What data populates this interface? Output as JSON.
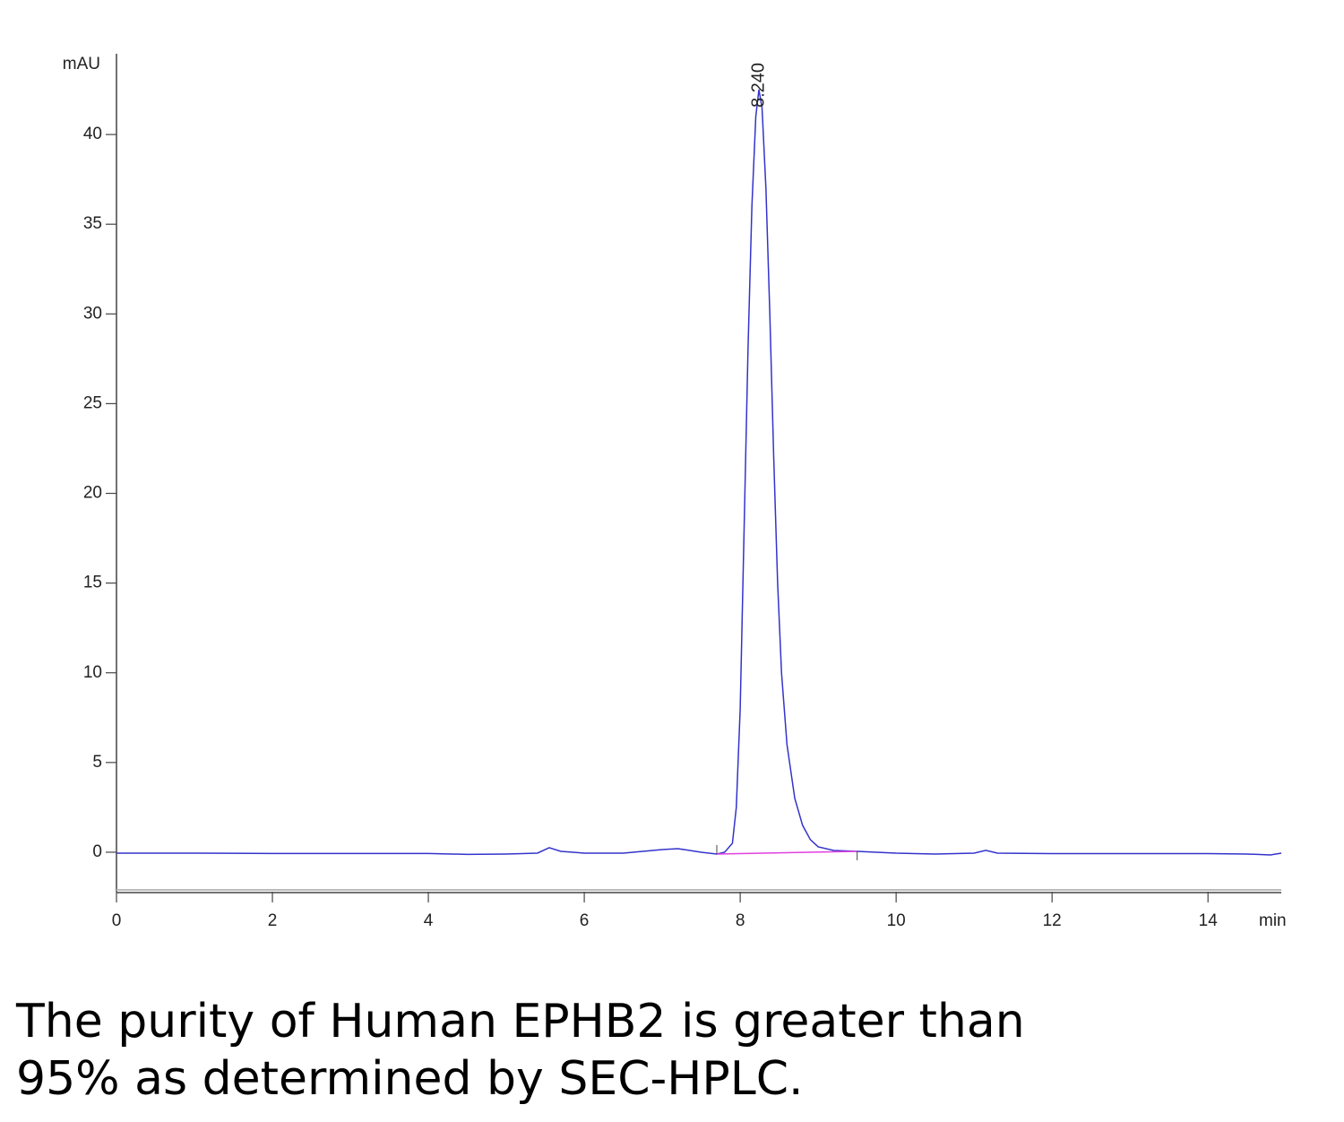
{
  "chart_data": {
    "type": "line",
    "y_label": "mAU",
    "x_label": "min",
    "x": [
      0,
      1,
      2,
      3,
      4,
      4.5,
      5,
      5.4,
      5.55,
      5.7,
      6,
      6.5,
      7.0,
      7.2,
      7.5,
      7.7,
      7.8,
      7.9,
      7.95,
      8.0,
      8.05,
      8.1,
      8.15,
      8.2,
      8.24,
      8.28,
      8.33,
      8.38,
      8.43,
      8.48,
      8.53,
      8.6,
      8.7,
      8.8,
      8.9,
      9.0,
      9.2,
      9.5,
      10,
      10.5,
      11,
      11.15,
      11.3,
      12,
      13,
      14,
      14.5,
      14.8,
      14.94
    ],
    "values": [
      -0.05,
      -0.05,
      -0.07,
      -0.07,
      -0.07,
      -0.12,
      -0.1,
      -0.05,
      0.25,
      0.05,
      -0.05,
      -0.05,
      0.15,
      0.2,
      0.0,
      -0.1,
      0.0,
      0.5,
      2.5,
      8,
      18,
      28,
      36,
      41,
      42.5,
      41.5,
      37,
      30,
      22,
      15,
      10,
      6,
      3,
      1.5,
      0.7,
      0.3,
      0.1,
      0.05,
      -0.05,
      -0.1,
      -0.05,
      0.1,
      -0.05,
      -0.08,
      -0.08,
      -0.08,
      -0.1,
      -0.15,
      -0.05
    ],
    "color": "#3333cc",
    "baseline": {
      "x": [
        7.7,
        9.5
      ],
      "values": [
        -0.1,
        0.05
      ],
      "color": "#e040e0"
    },
    "annotations": [
      {
        "x": 8.24,
        "y": 42.5,
        "text": "8.240"
      }
    ],
    "xlim": [
      0,
      14.94
    ],
    "ylim": [
      -2.2,
      44.5
    ],
    "xticks": [
      0,
      2,
      4,
      6,
      8,
      10,
      12,
      14
    ],
    "yticks": [
      0,
      5,
      10,
      15,
      20,
      25,
      30,
      35,
      40
    ]
  },
  "caption": [
    "The purity of Human EPHB2 is greater than",
    "95% as determined by SEC-HPLC."
  ]
}
